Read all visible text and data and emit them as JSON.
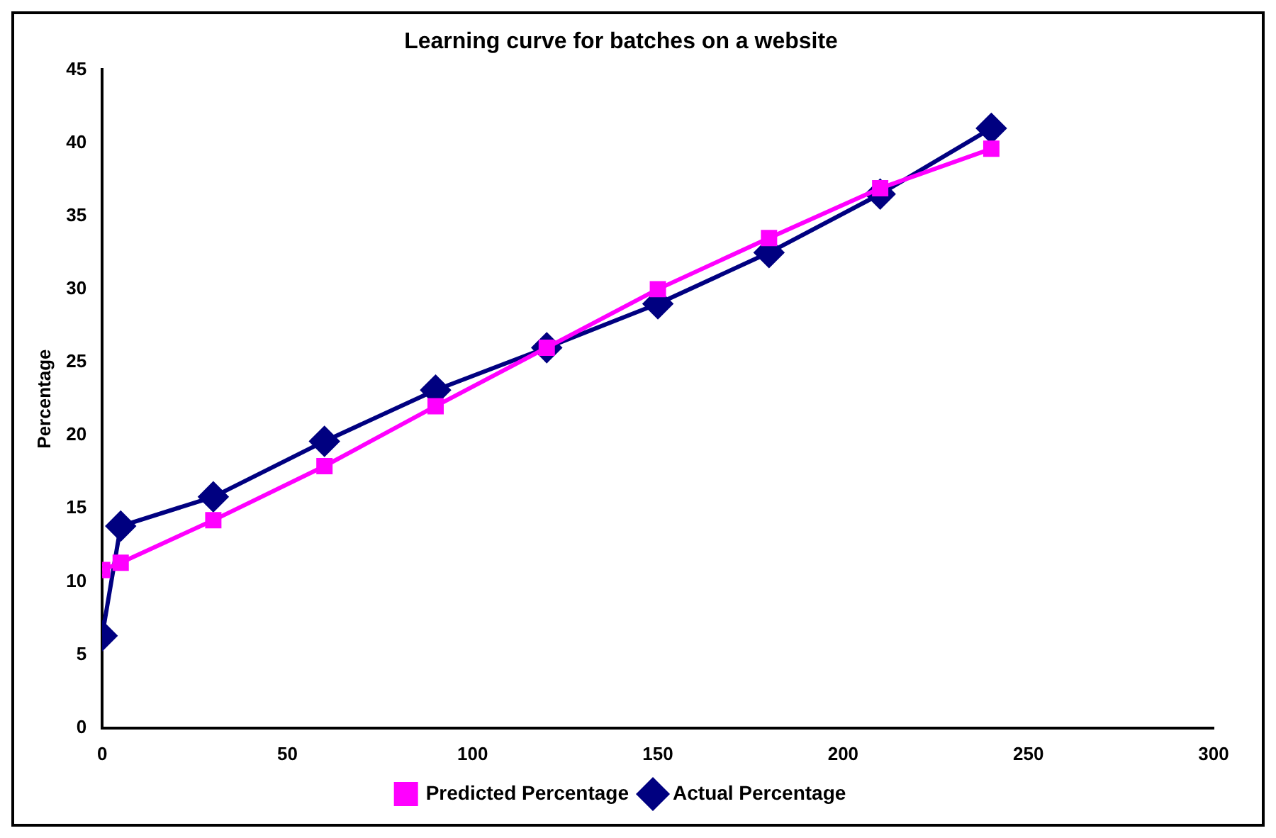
{
  "chart_data": {
    "type": "line",
    "title": "Learning curve for batches on a website",
    "ylabel": "Percentage",
    "x": [
      0,
      5,
      30,
      60,
      90,
      120,
      150,
      180,
      210,
      240
    ],
    "series": [
      {
        "name": "Actual Percentage",
        "color": "#000080",
        "marker": "diamond",
        "values": [
          6.3,
          13.8,
          15.8,
          19.6,
          23.1,
          26,
          29,
          32.5,
          36.5,
          41
        ]
      },
      {
        "name": "Predicted Percentage",
        "color": "#ff00ff",
        "marker": "square",
        "values": [
          10.8,
          11.3,
          14.2,
          17.9,
          22,
          26,
          30,
          33.5,
          36.9,
          39.6
        ]
      }
    ],
    "xlim": [
      0,
      300
    ],
    "xticks": [
      0,
      50,
      100,
      150,
      200,
      250,
      300
    ],
    "ylim": [
      0,
      45
    ],
    "yticks": [
      0,
      5,
      10,
      15,
      20,
      25,
      30,
      35,
      40,
      45
    ],
    "grid": false,
    "legend": "bottom",
    "line_style": "solid"
  }
}
